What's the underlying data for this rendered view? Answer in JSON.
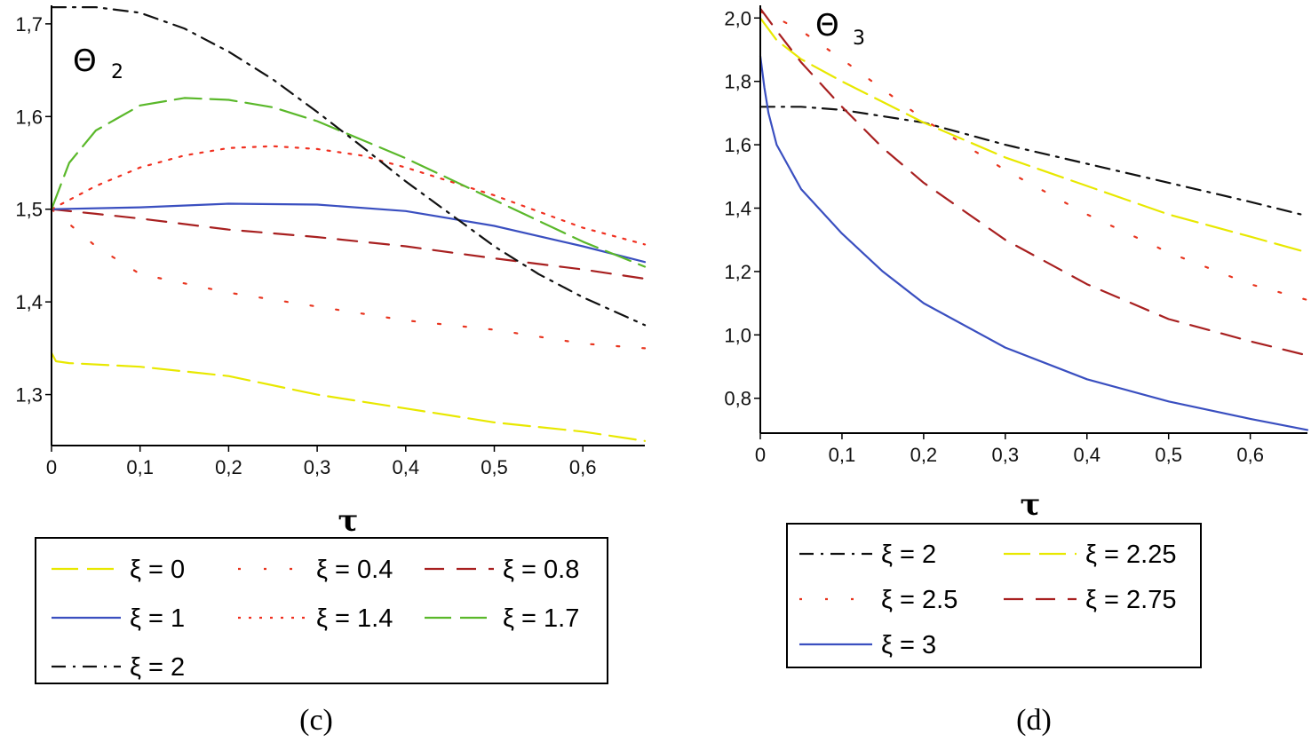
{
  "chart_data": [
    {
      "type": "line",
      "panel_label": "(c)",
      "title": "Θ",
      "title_subscript": "2",
      "xlabel": "τ",
      "ylabel": "",
      "xlim": [
        0,
        0.67
      ],
      "ylim": [
        1.245,
        1.72
      ],
      "x_ticks": [
        0,
        0.1,
        0.2,
        0.3,
        0.4,
        0.5,
        0.6
      ],
      "x_tick_labels": [
        "0",
        "0,1",
        "0,2",
        "0,3",
        "0,4",
        "0,5",
        "0,6"
      ],
      "y_ticks": [
        1.3,
        1.4,
        1.5,
        1.6,
        1.7
      ],
      "y_tick_labels": [
        "1,3",
        "1,4",
        "1,5",
        "1,6",
        "1,7"
      ],
      "legend_columns": 3,
      "series": [
        {
          "name": "ξ = 0",
          "color": "#e8e800",
          "dash": "long-dash",
          "x": [
            0,
            0.005,
            0.02,
            0.1,
            0.2,
            0.3,
            0.4,
            0.5,
            0.6,
            0.67
          ],
          "y": [
            1.345,
            1.336,
            1.334,
            1.33,
            1.32,
            1.3,
            1.285,
            1.27,
            1.26,
            1.25
          ]
        },
        {
          "name": "ξ = 0.4",
          "color": "#e8351f",
          "dash": "sparse-dot",
          "x": [
            0,
            0.05,
            0.1,
            0.2,
            0.3,
            0.4,
            0.5,
            0.6,
            0.67
          ],
          "y": [
            1.5,
            1.46,
            1.43,
            1.41,
            1.395,
            1.38,
            1.37,
            1.355,
            1.35
          ]
        },
        {
          "name": "ξ = 0.8",
          "color": "#a82020",
          "dash": "dash",
          "x": [
            0,
            0.05,
            0.1,
            0.2,
            0.3,
            0.4,
            0.5,
            0.6,
            0.67
          ],
          "y": [
            1.5,
            1.495,
            1.49,
            1.478,
            1.47,
            1.46,
            1.447,
            1.435,
            1.425
          ]
        },
        {
          "name": "ξ = 1",
          "color": "#3a4fc0",
          "dash": "solid",
          "x": [
            0,
            0.1,
            0.2,
            0.3,
            0.4,
            0.5,
            0.6,
            0.67
          ],
          "y": [
            1.5,
            1.502,
            1.506,
            1.505,
            1.498,
            1.482,
            1.46,
            1.443
          ]
        },
        {
          "name": "ξ = 1.4",
          "color": "#f03020",
          "dash": "dot",
          "x": [
            0,
            0.05,
            0.1,
            0.15,
            0.2,
            0.25,
            0.3,
            0.35,
            0.4,
            0.5,
            0.6,
            0.67
          ],
          "y": [
            1.5,
            1.525,
            1.545,
            1.558,
            1.566,
            1.568,
            1.565,
            1.558,
            1.545,
            1.515,
            1.48,
            1.462
          ]
        },
        {
          "name": "ξ = 1.7",
          "color": "#5ab82a",
          "dash": "long-dash",
          "x": [
            0,
            0.02,
            0.05,
            0.1,
            0.15,
            0.2,
            0.25,
            0.3,
            0.35,
            0.4,
            0.5,
            0.6,
            0.67
          ],
          "y": [
            1.5,
            1.55,
            1.585,
            1.612,
            1.62,
            1.618,
            1.61,
            1.595,
            1.575,
            1.555,
            1.51,
            1.465,
            1.438
          ]
        },
        {
          "name": "ξ = 2",
          "color": "#111111",
          "dash": "dash-dot",
          "x": [
            0,
            0.05,
            0.1,
            0.15,
            0.2,
            0.25,
            0.3,
            0.35,
            0.4,
            0.45,
            0.5,
            0.55,
            0.6,
            0.67
          ],
          "y": [
            1.718,
            1.718,
            1.712,
            1.695,
            1.67,
            1.64,
            1.605,
            1.568,
            1.53,
            1.495,
            1.46,
            1.43,
            1.405,
            1.375
          ]
        }
      ]
    },
    {
      "type": "line",
      "panel_label": "(d)",
      "title": "Θ",
      "title_subscript": "3",
      "xlabel": "τ",
      "ylabel": "",
      "xlim": [
        0,
        0.67
      ],
      "ylim": [
        0.69,
        2.04
      ],
      "x_ticks": [
        0,
        0.1,
        0.2,
        0.3,
        0.4,
        0.5,
        0.6
      ],
      "x_tick_labels": [
        "0",
        "0,1",
        "0,2",
        "0,3",
        "0,4",
        "0,5",
        "0,6"
      ],
      "y_ticks": [
        0.8,
        1.0,
        1.2,
        1.4,
        1.6,
        1.8,
        2.0
      ],
      "y_tick_labels": [
        "0,8",
        "1,0",
        "1,2",
        "1,4",
        "1,6",
        "1,8",
        "2,0"
      ],
      "legend_columns": 2,
      "series": [
        {
          "name": "ξ = 2",
          "color": "#111111",
          "dash": "dash-dot",
          "x": [
            0,
            0.05,
            0.1,
            0.2,
            0.3,
            0.4,
            0.5,
            0.6,
            0.67
          ],
          "y": [
            1.72,
            1.72,
            1.71,
            1.67,
            1.6,
            1.54,
            1.48,
            1.42,
            1.375
          ]
        },
        {
          "name": "ξ = 2.25",
          "color": "#e8e800",
          "dash": "long-dash",
          "x": [
            0,
            0.02,
            0.05,
            0.1,
            0.2,
            0.3,
            0.4,
            0.5,
            0.6,
            0.67
          ],
          "y": [
            2.0,
            1.93,
            1.87,
            1.8,
            1.67,
            1.56,
            1.47,
            1.38,
            1.31,
            1.26
          ]
        },
        {
          "name": "ξ = 2.5",
          "color": "#e8351f",
          "dash": "sparse-dot",
          "x": [
            0,
            0.02,
            0.05,
            0.1,
            0.2,
            0.3,
            0.4,
            0.5,
            0.6,
            0.67
          ],
          "y": [
            2.02,
            2.0,
            1.96,
            1.87,
            1.68,
            1.52,
            1.38,
            1.26,
            1.16,
            1.11
          ]
        },
        {
          "name": "ξ = 2.75",
          "color": "#a82020",
          "dash": "dash",
          "x": [
            0,
            0.02,
            0.05,
            0.1,
            0.15,
            0.2,
            0.3,
            0.4,
            0.5,
            0.6,
            0.67
          ],
          "y": [
            2.03,
            1.96,
            1.86,
            1.72,
            1.59,
            1.48,
            1.3,
            1.16,
            1.05,
            0.98,
            0.935
          ]
        },
        {
          "name": "ξ = 3",
          "color": "#3a4fc0",
          "dash": "solid",
          "x": [
            0,
            0.005,
            0.01,
            0.02,
            0.05,
            0.1,
            0.15,
            0.2,
            0.3,
            0.4,
            0.5,
            0.6,
            0.67
          ],
          "y": [
            1.88,
            1.78,
            1.7,
            1.6,
            1.46,
            1.32,
            1.2,
            1.1,
            0.96,
            0.86,
            0.79,
            0.735,
            0.7
          ]
        }
      ]
    }
  ]
}
